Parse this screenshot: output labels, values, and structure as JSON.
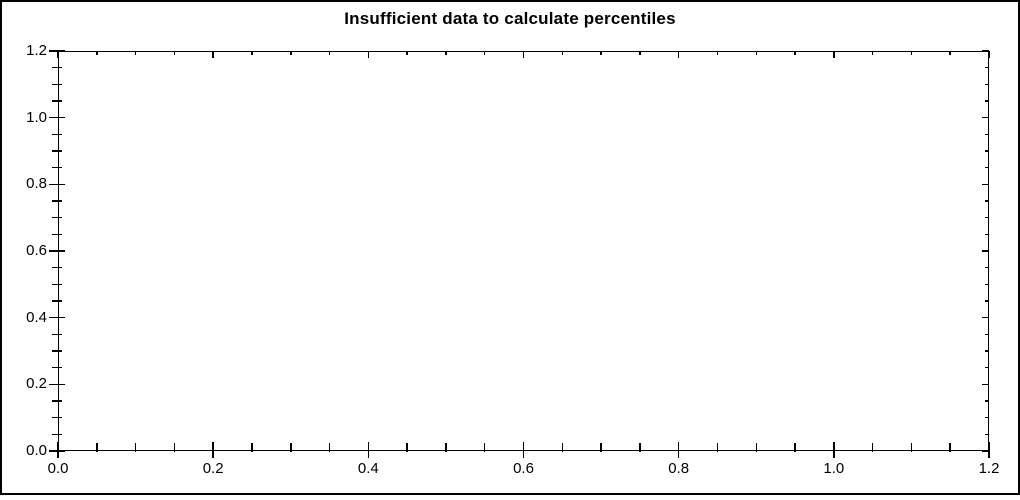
{
  "window": {
    "background": "#ffffff",
    "border_color": "#000000"
  },
  "chart_data": {
    "type": "line",
    "title": "Insufficient data to calculate percentiles",
    "series": [],
    "xlabel": "",
    "ylabel": "",
    "xlim": [
      0.0,
      1.2
    ],
    "ylim": [
      0.0,
      1.2
    ],
    "x_major_ticks": [
      0.0,
      0.2,
      0.4,
      0.6,
      0.8,
      1.0,
      1.2
    ],
    "x_major_tick_labels": [
      "0.0",
      "0.2",
      "0.4",
      "0.6",
      "0.8",
      "1.0",
      "1.2"
    ],
    "x_minor_tick_step": 0.05,
    "y_major_ticks": [
      0.0,
      0.2,
      0.4,
      0.6,
      0.8,
      1.0,
      1.2
    ],
    "y_major_tick_labels": [
      "0.0",
      "0.2",
      "0.4",
      "0.6",
      "0.8",
      "1.0",
      "1.2"
    ],
    "y_minor_tick_step": 0.05,
    "grid": false,
    "legend": false,
    "axis_color": "#000000",
    "text_color": "#000000",
    "plot_background": "#ffffff"
  }
}
